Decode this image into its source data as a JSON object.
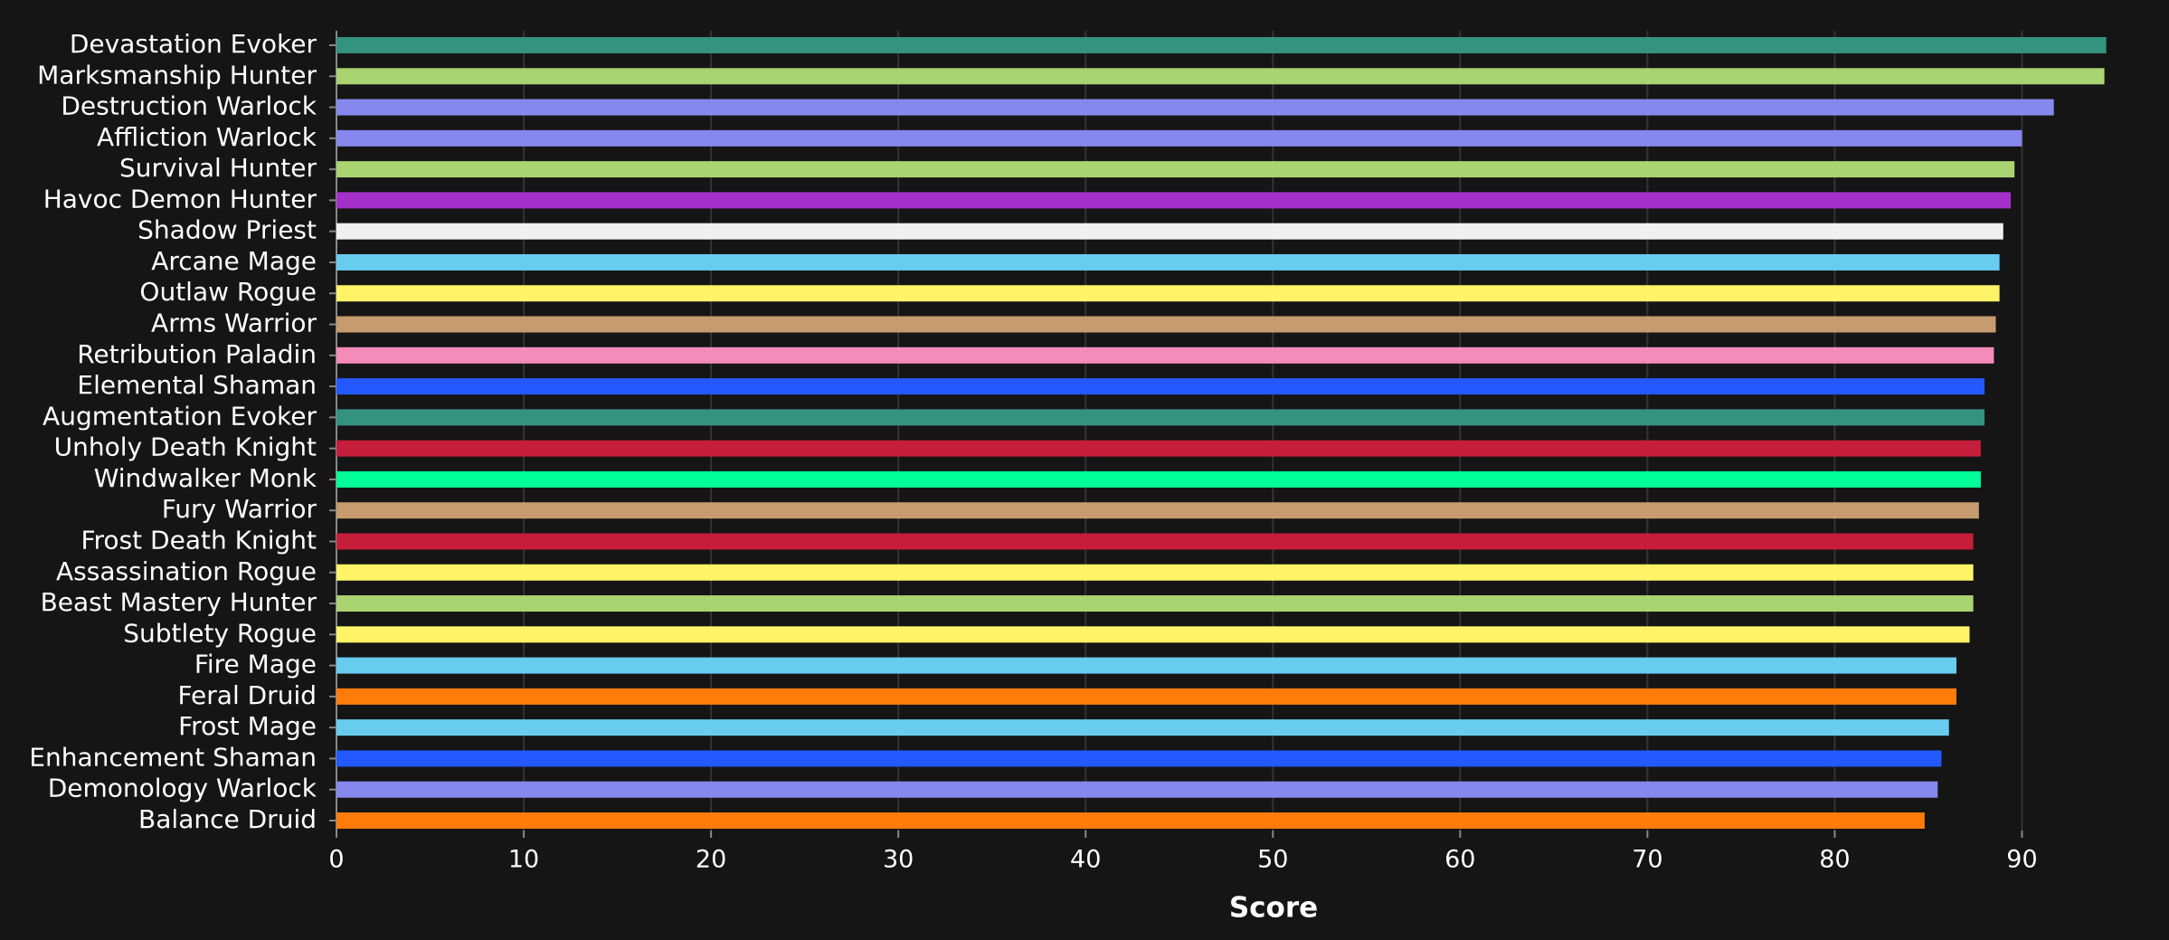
{
  "chart_data": {
    "type": "barh",
    "x_label": "Score",
    "categories": [
      "Devastation Evoker",
      "Marksmanship Hunter",
      "Destruction Warlock",
      "Affliction Warlock",
      "Survival Hunter",
      "Havoc Demon Hunter",
      "Shadow Priest",
      "Arcane Mage",
      "Outlaw Rogue",
      "Arms Warrior",
      "Retribution Paladin",
      "Elemental Shaman",
      "Augmentation Evoker",
      "Unholy Death Knight",
      "Windwalker Monk",
      "Fury Warrior",
      "Frost Death Knight",
      "Assassination Rogue",
      "Beast Mastery Hunter",
      "Subtlety Rogue",
      "Fire Mage",
      "Feral Druid",
      "Frost Mage",
      "Enhancement Shaman",
      "Demonology Warlock",
      "Balance Druid"
    ],
    "values": [
      94.5,
      94.4,
      91.7,
      90.0,
      89.6,
      89.4,
      89.0,
      88.8,
      88.8,
      88.6,
      88.5,
      88.0,
      88.0,
      87.8,
      87.8,
      87.7,
      87.4,
      87.4,
      87.4,
      87.2,
      86.5,
      86.5,
      86.1,
      85.7,
      85.5,
      84.8
    ],
    "colors": [
      "#33937f",
      "#aad372",
      "#8788ee",
      "#8788ee",
      "#aad372",
      "#a330c9",
      "#f0f0f0",
      "#68ccef",
      "#fff468",
      "#c69b6d",
      "#f48cba",
      "#2359ff",
      "#33937f",
      "#c41e3b",
      "#00ff98",
      "#c69b6d",
      "#c41e3b",
      "#fff468",
      "#aad372",
      "#fff468",
      "#68ccef",
      "#ff7c0a",
      "#68ccef",
      "#2359ff",
      "#8788ee",
      "#ff7c0a"
    ],
    "xlim": [
      0,
      95
    ],
    "xticks": [
      0,
      10,
      20,
      30,
      40,
      50,
      60,
      70,
      80,
      90
    ],
    "grid": true
  }
}
